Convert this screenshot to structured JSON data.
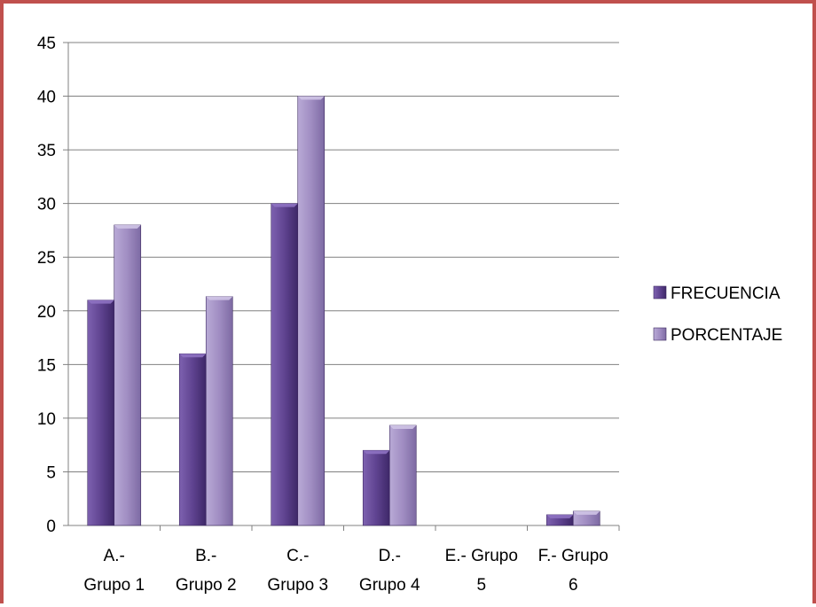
{
  "chart_data": {
    "type": "bar",
    "categories": [
      [
        "A.-",
        "Grupo 1"
      ],
      [
        "B.-",
        "Grupo 2"
      ],
      [
        "C.-",
        "Grupo 3"
      ],
      [
        "D.-",
        "Grupo 4"
      ],
      [
        "E.- Grupo",
        "5"
      ],
      [
        "F.- Grupo",
        "6"
      ]
    ],
    "series": [
      {
        "name": "FRECUENCIA",
        "values": [
          21,
          16,
          30,
          7,
          0,
          1
        ],
        "color": "#6a4c9c"
      },
      {
        "name": "PORCENTAJE",
        "values": [
          28,
          21.33,
          40,
          9.33,
          0,
          1.33
        ],
        "color": "#a593c4"
      }
    ],
    "ylim": [
      0,
      45
    ],
    "yticks": [
      "0",
      "5",
      "10",
      "15",
      "20",
      "25",
      "30",
      "35",
      "40",
      "45"
    ],
    "grid": true,
    "legend_position": "right",
    "border_color": "#c0504d"
  }
}
